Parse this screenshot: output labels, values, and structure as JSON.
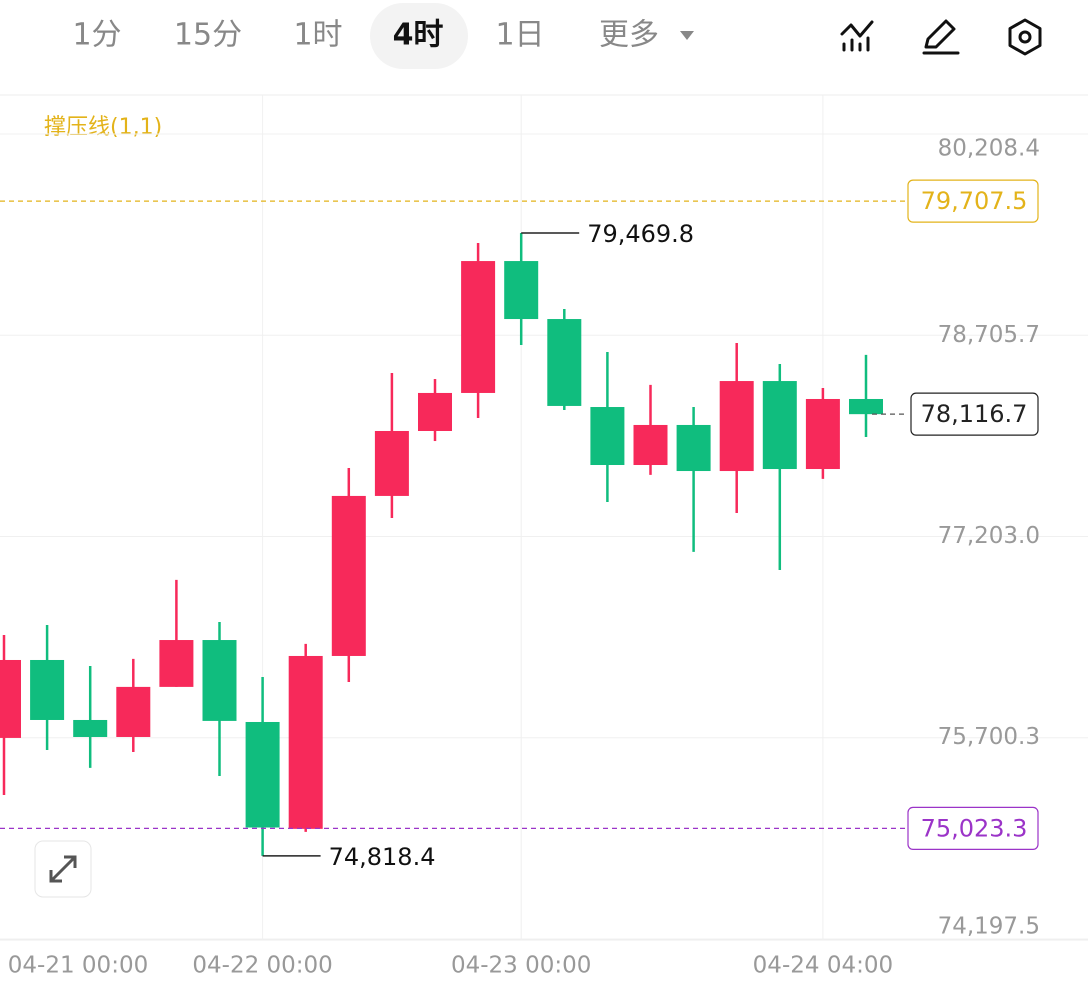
{
  "toolbar": {
    "tabs": [
      "1分",
      "15分",
      "1时",
      "4时",
      "1日",
      "更多"
    ],
    "active": 3
  },
  "chart_data": {
    "type": "candlestick",
    "indicator": "撑压线(1,1)",
    "up_color": "#f7295a",
    "down_color": "#10bd7e",
    "categories": [
      "04-21 00:00",
      null,
      null,
      null,
      null,
      null,
      "04-22 00:00",
      null,
      null,
      null,
      null,
      null,
      "04-23 00:00",
      null,
      null,
      null,
      null,
      null,
      null,
      "04-24 04:00",
      null
    ],
    "open": [
      75699,
      76281,
      75833,
      75706,
      76080,
      76430,
      75818,
      75020,
      76311,
      77506,
      77991,
      78275,
      79260,
      78827,
      78170,
      77737,
      78036,
      77692,
      78364,
      77707,
      78230
    ],
    "high": [
      76468,
      76542,
      76236,
      76289,
      76879,
      76565,
      76154,
      76401,
      77715,
      78424,
      78379,
      79395,
      79469.8,
      78902,
      78581,
      78335,
      78170,
      78648,
      78491,
      78312,
      78559
    ],
    "low": [
      75273,
      75609,
      75475,
      75594,
      76080,
      75415,
      74818.4,
      74997,
      76117,
      77341,
      77916,
      78088,
      78633,
      78148,
      77461,
      77663,
      77088,
      77379,
      76953,
      77633,
      77946
    ],
    "close": [
      76281,
      75833,
      75706,
      76080,
      76430,
      75826,
      75030,
      76311,
      77506,
      77991,
      78275,
      79260,
      78827,
      78178,
      77737,
      78036,
      77692,
      78364,
      77707,
      78230,
      78116.7
    ],
    "ylim": [
      74190,
      80500
    ],
    "yticks": [
      {
        "value": 74197.5,
        "label": "74,197.5"
      },
      {
        "value": 75700.3,
        "label": "75,700.3"
      },
      {
        "value": 77203.0,
        "label": "77,203.0"
      },
      {
        "value": 78705.7,
        "label": "78,705.7"
      },
      {
        "value": 80208.4,
        "label": "80,208.4"
      }
    ],
    "grid": true,
    "annotations": [
      {
        "value": 79469.8,
        "label": "79,469.8",
        "index": 12
      },
      {
        "value": 74818.4,
        "label": "74,818.4",
        "index": 6
      }
    ],
    "price_lines": [
      {
        "value": 79707.5,
        "label": "79,707.5",
        "color": "#e3b31a"
      },
      {
        "value": 75023.3,
        "label": "75,023.3",
        "color": "#9b34c8"
      },
      {
        "value": 78116.7,
        "label": "78,116.7",
        "color": "#222222"
      }
    ]
  }
}
